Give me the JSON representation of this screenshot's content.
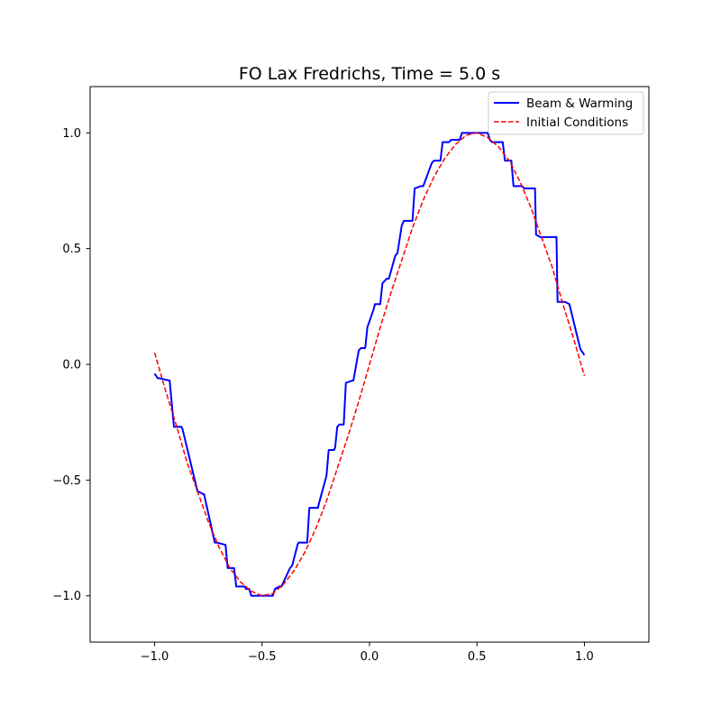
{
  "chart_data": {
    "type": "line",
    "title": "FO Lax Fredrichs, Time = 5.0 s",
    "xlabel": "",
    "ylabel": "",
    "xlim": [
      -1.3,
      1.3
    ],
    "ylim": [
      -1.2,
      1.2
    ],
    "xticks": [
      -1.0,
      -0.5,
      0.0,
      0.5,
      1.0
    ],
    "xtick_labels": [
      "−1.0",
      "−0.5",
      "0.0",
      "0.5",
      "1.0"
    ],
    "yticks": [
      -1.0,
      -0.5,
      0.0,
      0.5,
      1.0
    ],
    "ytick_labels": [
      "−1.0",
      "−0.5",
      "0.0",
      "0.5",
      "1.0"
    ],
    "grid": false,
    "legend_position": "upper right",
    "series": [
      {
        "name": "Beam & Warming",
        "color": "#0000ff",
        "style": "solid",
        "x": [
          -1.0,
          -0.985,
          -0.98,
          -0.93,
          -0.91,
          -0.875,
          -0.87,
          -0.8,
          -0.795,
          -0.775,
          -0.77,
          -0.72,
          -0.71,
          -0.67,
          -0.66,
          -0.63,
          -0.62,
          -0.58,
          -0.575,
          -0.56,
          -0.55,
          -0.45,
          -0.44,
          -0.42,
          -0.41,
          -0.37,
          -0.36,
          -0.335,
          -0.33,
          -0.29,
          -0.28,
          -0.24,
          -0.235,
          -0.2,
          -0.19,
          -0.165,
          -0.16,
          -0.15,
          -0.14,
          -0.12,
          -0.11,
          -0.08,
          -0.075,
          -0.05,
          -0.04,
          -0.02,
          -0.01,
          0.02,
          0.025,
          0.05,
          0.06,
          0.08,
          0.09,
          0.12,
          0.13,
          0.15,
          0.16,
          0.2,
          0.21,
          0.24,
          0.25,
          0.29,
          0.3,
          0.33,
          0.34,
          0.37,
          0.38,
          0.42,
          0.43,
          0.45,
          0.46,
          0.55,
          0.56,
          0.57,
          0.58,
          0.62,
          0.63,
          0.66,
          0.67,
          0.71,
          0.72,
          0.77,
          0.775,
          0.795,
          0.8,
          0.87,
          0.875,
          0.91,
          0.93,
          0.98,
          0.985,
          1.0
        ],
        "y": [
          -0.04,
          -0.06,
          -0.06,
          -0.07,
          -0.27,
          -0.27,
          -0.28,
          -0.55,
          -0.55,
          -0.56,
          -0.56,
          -0.77,
          -0.77,
          -0.78,
          -0.88,
          -0.88,
          -0.96,
          -0.96,
          -0.97,
          -0.97,
          -1.0,
          -1.0,
          -0.97,
          -0.96,
          -0.96,
          -0.88,
          -0.87,
          -0.78,
          -0.77,
          -0.77,
          -0.62,
          -0.62,
          -0.6,
          -0.48,
          -0.37,
          -0.37,
          -0.36,
          -0.27,
          -0.26,
          -0.26,
          -0.08,
          -0.07,
          -0.07,
          0.06,
          0.07,
          0.07,
          0.16,
          0.24,
          0.26,
          0.26,
          0.35,
          0.37,
          0.37,
          0.47,
          0.48,
          0.6,
          0.62,
          0.62,
          0.76,
          0.77,
          0.77,
          0.87,
          0.88,
          0.88,
          0.96,
          0.96,
          0.97,
          0.97,
          1.0,
          1.0,
          1.0,
          1.0,
          0.97,
          0.96,
          0.96,
          0.96,
          0.88,
          0.88,
          0.77,
          0.77,
          0.76,
          0.76,
          0.56,
          0.55,
          0.55,
          0.55,
          0.27,
          0.27,
          0.26,
          0.07,
          0.06,
          0.04
        ]
      },
      {
        "name": "Initial Conditions",
        "color": "#ff0000",
        "style": "dashed",
        "function": "sin(pi*x)",
        "x": [
          -1.0,
          -0.95,
          -0.9,
          -0.85,
          -0.8,
          -0.75,
          -0.7,
          -0.65,
          -0.6,
          -0.55,
          -0.5,
          -0.45,
          -0.4,
          -0.35,
          -0.3,
          -0.25,
          -0.2,
          -0.15,
          -0.1,
          -0.05,
          0.0,
          0.05,
          0.1,
          0.15,
          0.2,
          0.25,
          0.3,
          0.35,
          0.4,
          0.45,
          0.5,
          0.55,
          0.6,
          0.65,
          0.7,
          0.75,
          0.8,
          0.85,
          0.9,
          0.95,
          1.0
        ],
        "y": [
          0.05,
          -0.11,
          -0.26,
          -0.42,
          -0.55,
          -0.68,
          -0.79,
          -0.88,
          -0.94,
          -0.98,
          -1.0,
          -0.99,
          -0.95,
          -0.89,
          -0.81,
          -0.71,
          -0.59,
          -0.45,
          -0.31,
          -0.16,
          0.0,
          0.16,
          0.31,
          0.45,
          0.59,
          0.71,
          0.81,
          0.89,
          0.95,
          0.99,
          1.0,
          0.98,
          0.94,
          0.88,
          0.79,
          0.68,
          0.55,
          0.42,
          0.26,
          0.11,
          -0.05
        ]
      }
    ]
  }
}
